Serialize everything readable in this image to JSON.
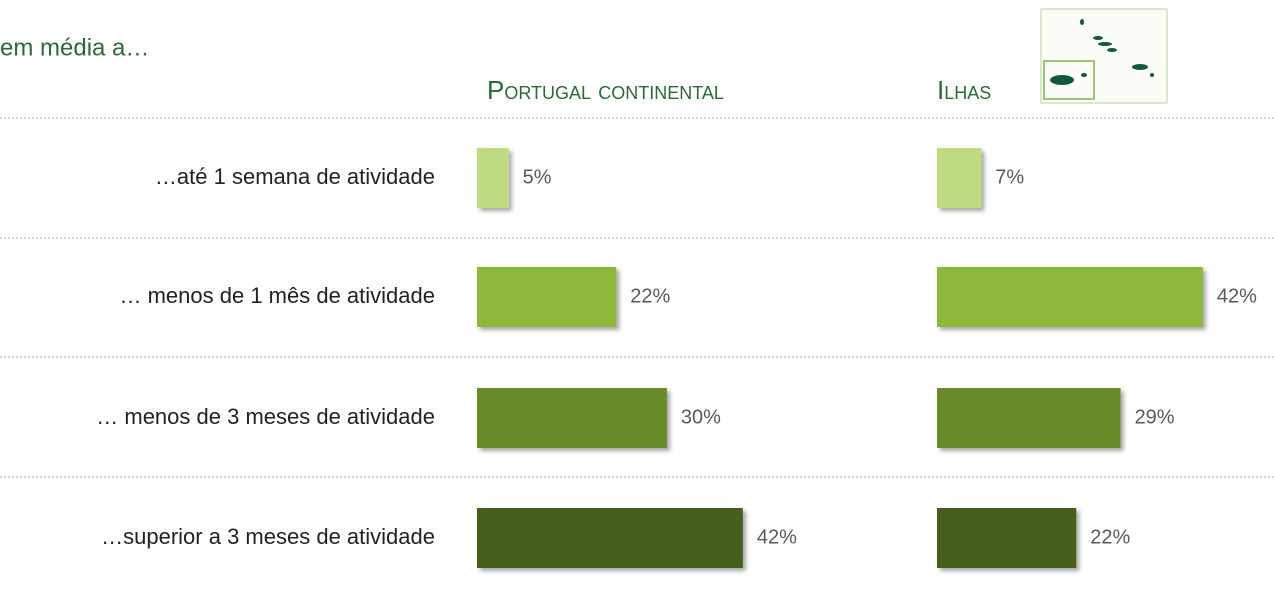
{
  "heading": "em média a…",
  "categories": [
    "…até 1 semana de atividade",
    "… menos de 1 mês de atividade",
    "… menos de 3 meses de atividade",
    "…superior a 3 meses de atividade"
  ],
  "colors": [
    "#bfdb82",
    "#8cb83a",
    "#6a8b2b",
    "#465e1c"
  ],
  "chart_data": [
    {
      "type": "bar",
      "orientation": "horizontal",
      "title": "Portugal continental",
      "values": [
        5,
        22,
        30,
        42
      ],
      "value_labels": [
        "5%",
        "22%",
        "30%",
        "42%"
      ]
    },
    {
      "type": "bar",
      "orientation": "horizontal",
      "title": "Ilhas",
      "values": [
        7,
        42,
        29,
        22
      ],
      "value_labels": [
        "7%",
        "42%",
        "29%",
        "22%"
      ]
    }
  ]
}
